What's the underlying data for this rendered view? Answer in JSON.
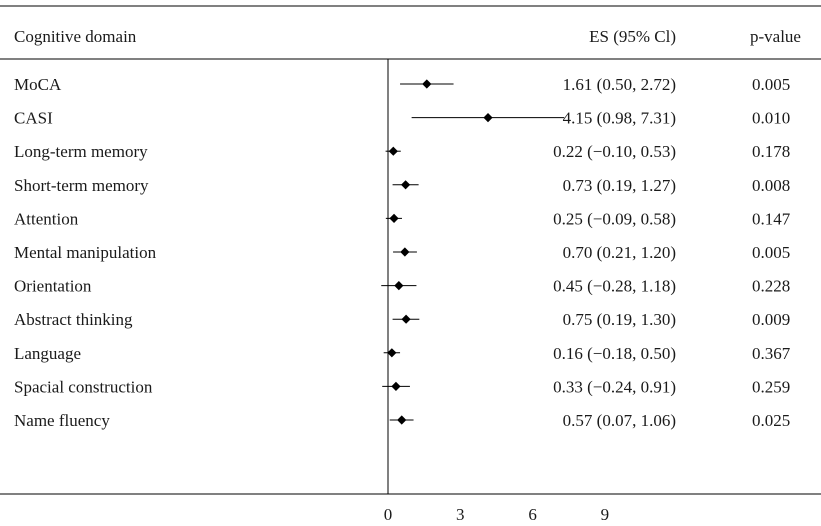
{
  "chart_data": {
    "type": "forest",
    "columns": {
      "domain": "Cognitive domain",
      "es": "ES (95% Cl)",
      "pvalue_italic": "p",
      "pvalue_rest": "-value"
    },
    "rows": [
      {
        "label": "MoCA",
        "es": 1.61,
        "lower": 0.5,
        "upper": 2.72,
        "es_text": "1.61 (0.50, 2.72)",
        "p_text": "0.005"
      },
      {
        "label": "CASI",
        "es": 4.15,
        "lower": 0.98,
        "upper": 7.31,
        "es_text": "4.15 (0.98, 7.31)",
        "p_text": "0.010"
      },
      {
        "label": "Long-term memory",
        "es": 0.22,
        "lower": -0.1,
        "upper": 0.53,
        "es_text": "0.22 (−0.10, 0.53)",
        "p_text": "0.178"
      },
      {
        "label": "Short-term memory",
        "es": 0.73,
        "lower": 0.19,
        "upper": 1.27,
        "es_text": "0.73 (0.19, 1.27)",
        "p_text": "0.008"
      },
      {
        "label": "Attention",
        "es": 0.25,
        "lower": -0.09,
        "upper": 0.58,
        "es_text": "0.25 (−0.09, 0.58)",
        "p_text": "0.147"
      },
      {
        "label": "Mental manipulation",
        "es": 0.7,
        "lower": 0.21,
        "upper": 1.2,
        "es_text": "0.70 (0.21, 1.20)",
        "p_text": "0.005"
      },
      {
        "label": "Orientation",
        "es": 0.45,
        "lower": -0.28,
        "upper": 1.18,
        "es_text": "0.45 (−0.28, 1.18)",
        "p_text": "0.228"
      },
      {
        "label": "Abstract thinking",
        "es": 0.75,
        "lower": 0.19,
        "upper": 1.3,
        "es_text": "0.75 (0.19, 1.30)",
        "p_text": "0.009"
      },
      {
        "label": "Language",
        "es": 0.16,
        "lower": -0.18,
        "upper": 0.5,
        "es_text": "0.16 (−0.18, 0.50)",
        "p_text": "0.367"
      },
      {
        "label": "Spacial construction",
        "es": 0.33,
        "lower": -0.24,
        "upper": 0.91,
        "es_text": "0.33 (−0.24, 0.91)",
        "p_text": "0.259"
      },
      {
        "label": "Name fluency",
        "es": 0.57,
        "lower": 0.07,
        "upper": 1.06,
        "es_text": "0.57 (0.07, 1.06)",
        "p_text": "0.025"
      }
    ],
    "x_ticks": [
      0,
      3,
      6,
      9
    ],
    "tick_labels": [
      "0",
      "3",
      "6",
      "9"
    ],
    "xlim": [
      0,
      9
    ],
    "reference_line": 0,
    "grid": false,
    "marker": "diamond",
    "colors": {
      "ink": "#000000",
      "text": "#1a1a1a"
    }
  }
}
